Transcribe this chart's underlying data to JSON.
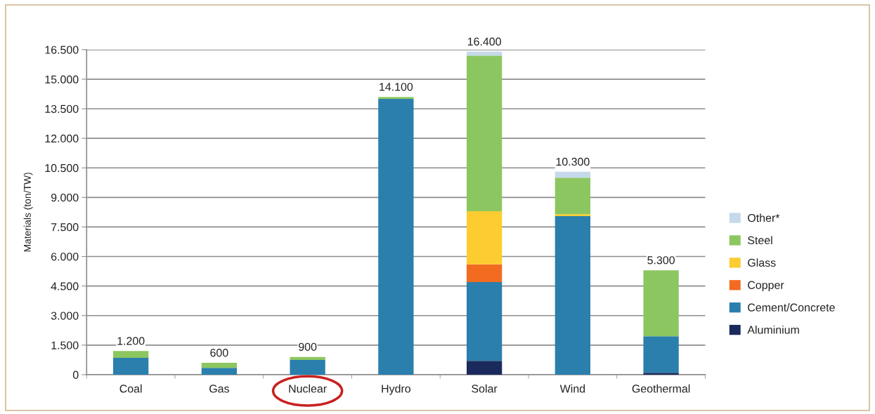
{
  "chart_data": {
    "type": "bar",
    "stacked": true,
    "categories": [
      "Coal",
      "Gas",
      "Nuclear",
      "Hydro",
      "Solar",
      "Wind",
      "Geothermal"
    ],
    "series": [
      {
        "name": "Aluminium",
        "color": "#1b2a5c",
        "values": [
          null,
          null,
          null,
          null,
          700,
          null,
          100
        ]
      },
      {
        "name": "Cement/Concrete",
        "color": "#2a7fad",
        "values": [
          850,
          350,
          750,
          14000,
          4000,
          8050,
          1850
        ]
      },
      {
        "name": "Copper",
        "color": "#f26b21",
        "values": [
          null,
          null,
          null,
          null,
          900,
          null,
          null
        ]
      },
      {
        "name": "Glass",
        "color": "#fccc30",
        "values": [
          null,
          null,
          null,
          null,
          2700,
          100,
          null
        ]
      },
      {
        "name": "Steel",
        "color": "#8cc660",
        "values": [
          350,
          250,
          150,
          100,
          7900,
          1850,
          3350
        ]
      },
      {
        "name": "Other*",
        "color": "#c5d9ea",
        "values": [
          null,
          null,
          null,
          null,
          200,
          300,
          null
        ]
      }
    ],
    "totals": [
      "1.200",
      "600",
      "900",
      "14.100",
      "16.400",
      "10.300",
      "5.300"
    ],
    "ylabel": "Materials (ton/TW)",
    "ylim": [
      0,
      16500
    ],
    "yticks": [
      0,
      {
        "value": 1500,
        "label": "1.500"
      },
      {
        "value": 3000,
        "label": "3.000"
      },
      {
        "value": 4500,
        "label": "4.500"
      },
      {
        "value": 6000,
        "label": "6.000"
      },
      {
        "value": 7500,
        "label": "7.500"
      },
      {
        "value": 9000,
        "label": "9.000"
      },
      {
        "value": 10500,
        "label": "10.500"
      },
      {
        "value": 12000,
        "label": "12.000"
      },
      {
        "value": 13500,
        "label": "13.500"
      },
      {
        "value": 15000,
        "label": "15.000"
      },
      {
        "value": 16500,
        "label": "16.500"
      }
    ],
    "grid": "y",
    "legend": "right"
  }
}
